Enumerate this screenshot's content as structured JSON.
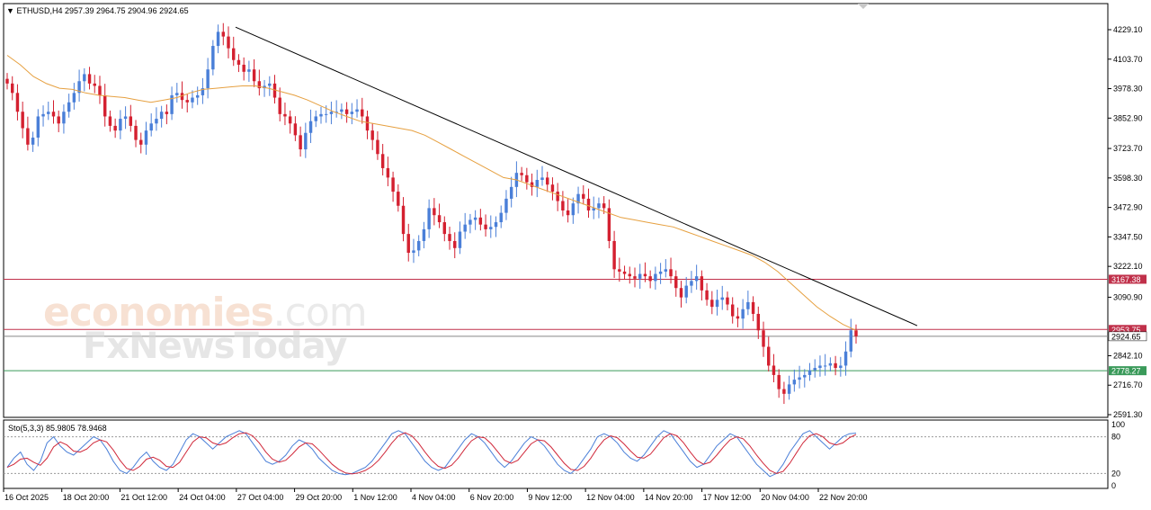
{
  "symbol_header": {
    "symbol": "ETHUSD,H4",
    "ohlc": "2957.39 2964.75 2904.96 2924.65"
  },
  "watermark": {
    "line1_main": "economies",
    "line1_suffix": ".com",
    "line2": "FxNewsToday"
  },
  "price_axis": {
    "labels": [
      "4229.10",
      "4103.70",
      "3978.30",
      "3852.90",
      "3723.70",
      "3598.30",
      "3472.90",
      "3347.50",
      "3222.10",
      "3090.90",
      "2842.10",
      "2716.70",
      "2591.30"
    ]
  },
  "levels": [
    {
      "label": "3167.38",
      "value": 3167.38,
      "color": "#c0304a"
    },
    {
      "label": "2953.75",
      "value": 2953.75,
      "color": "#c0304a"
    },
    {
      "label": "2924.65",
      "value": 2924.65,
      "color": "#ffffff"
    },
    {
      "label": "2778.27",
      "value": 2778.27,
      "color": "#3a9a5a"
    }
  ],
  "time_axis": {
    "labels": [
      "16 Oct 2025",
      "18 Oct 20:00",
      "21 Oct 12:00",
      "24 Oct 04:00",
      "27 Oct 04:00",
      "29 Oct 20:00",
      "1 Nov 12:00",
      "4 Nov 04:00",
      "6 Nov 20:00",
      "9 Nov 12:00",
      "12 Nov 04:00",
      "14 Nov 20:00",
      "17 Nov 12:00",
      "20 Nov 04:00",
      "22 Nov 20:00"
    ]
  },
  "stochastic": {
    "header": "Sto(5,3,3) 85.9805 78.9468",
    "axis_labels": [
      "100",
      "80",
      "20",
      "0"
    ],
    "main_color": "#4a7fd8",
    "signal_color": "#d0283a"
  },
  "chart_data": {
    "type": "candlestick",
    "symbol": "ETHUSD",
    "timeframe": "H4",
    "ylim": [
      2591.3,
      4290
    ],
    "candles_close_approx": [
      4000,
      3960,
      3880,
      3810,
      3740,
      3770,
      3860,
      3870,
      3880,
      3860,
      3830,
      3880,
      3920,
      3960,
      4010,
      4040,
      4000,
      3990,
      3950,
      3860,
      3820,
      3800,
      3850,
      3860,
      3820,
      3760,
      3740,
      3800,
      3830,
      3850,
      3880,
      3870,
      3950,
      3960,
      3930,
      3920,
      3940,
      3950,
      3980,
      4060,
      4160,
      4220,
      4200,
      4150,
      4100,
      4080,
      4050,
      4060,
      4010,
      3980,
      3990,
      4000,
      3940,
      3870,
      3860,
      3830,
      3780,
      3720,
      3790,
      3840,
      3860,
      3870,
      3870,
      3880,
      3880,
      3890,
      3870,
      3880,
      3890,
      3860,
      3800,
      3760,
      3700,
      3640,
      3600,
      3540,
      3480,
      3360,
      3280,
      3290,
      3330,
      3380,
      3470,
      3440,
      3410,
      3360,
      3330,
      3300,
      3370,
      3400,
      3420,
      3430,
      3400,
      3380,
      3390,
      3410,
      3450,
      3510,
      3560,
      3620,
      3610,
      3580,
      3560,
      3590,
      3600,
      3570,
      3540,
      3500,
      3460,
      3440,
      3490,
      3530,
      3510,
      3460,
      3470,
      3490,
      3470,
      3330,
      3210,
      3200,
      3190,
      3180,
      3170,
      3190,
      3180,
      3160,
      3190,
      3200,
      3210,
      3180,
      3130,
      3090,
      3140,
      3160,
      3180,
      3120,
      3080,
      3050,
      3080,
      3090,
      3060,
      3010,
      3000,
      3040,
      3070,
      3020,
      2950,
      2880,
      2800,
      2760,
      2700,
      2680,
      2720,
      2740,
      2750,
      2760,
      2780,
      2790,
      2800,
      2800,
      2810,
      2790,
      2800,
      2860,
      2950,
      2924.65
    ],
    "moving_average": {
      "color": "#e6a040",
      "values_approx": [
        4120,
        4080,
        4030,
        4000,
        3980,
        3975,
        3960,
        3950,
        3945,
        3940,
        3930,
        3920,
        3930,
        3940,
        3960,
        3975,
        3980,
        3985,
        3990,
        3990,
        3980,
        3965,
        3950,
        3930,
        3905,
        3880,
        3860,
        3840,
        3830,
        3820,
        3810,
        3800,
        3780,
        3750,
        3720,
        3690,
        3660,
        3630,
        3600,
        3590,
        3570,
        3550,
        3530,
        3510,
        3490,
        3470,
        3450,
        3430,
        3420,
        3410,
        3400,
        3390,
        3370,
        3350,
        3330,
        3310,
        3290,
        3270,
        3240,
        3200,
        3150,
        3100,
        3050,
        3010,
        2975,
        2950
      ]
    },
    "trendline": {
      "start": {
        "x_label": "27 Oct 04:00",
        "y": 4240
      },
      "end": {
        "x_label": "22 Nov 20:00",
        "y": 2970
      },
      "color": "#000000"
    },
    "stochastic_main_approx": [
      30,
      45,
      55,
      35,
      25,
      40,
      70,
      80,
      65,
      55,
      50,
      60,
      70,
      80,
      75,
      60,
      40,
      25,
      20,
      30,
      45,
      55,
      40,
      30,
      25,
      35,
      55,
      75,
      85,
      80,
      70,
      60,
      70,
      80,
      85,
      90,
      85,
      70,
      55,
      40,
      35,
      40,
      50,
      65,
      75,
      70,
      60,
      45,
      35,
      25,
      20,
      18,
      20,
      25,
      30,
      40,
      55,
      70,
      85,
      90,
      85,
      70,
      55,
      40,
      30,
      25,
      30,
      45,
      60,
      75,
      85,
      80,
      70,
      55,
      40,
      30,
      40,
      55,
      70,
      80,
      75,
      65,
      50,
      35,
      25,
      20,
      30,
      45,
      60,
      80,
      85,
      80,
      70,
      55,
      45,
      40,
      50,
      65,
      80,
      90,
      85,
      70,
      55,
      40,
      30,
      35,
      50,
      65,
      75,
      85,
      80,
      65,
      50,
      35,
      25,
      15,
      20,
      35,
      55,
      70,
      85,
      90,
      80,
      70,
      60,
      70,
      80,
      85,
      86
    ],
    "ylabel": "",
    "xlabel": ""
  }
}
